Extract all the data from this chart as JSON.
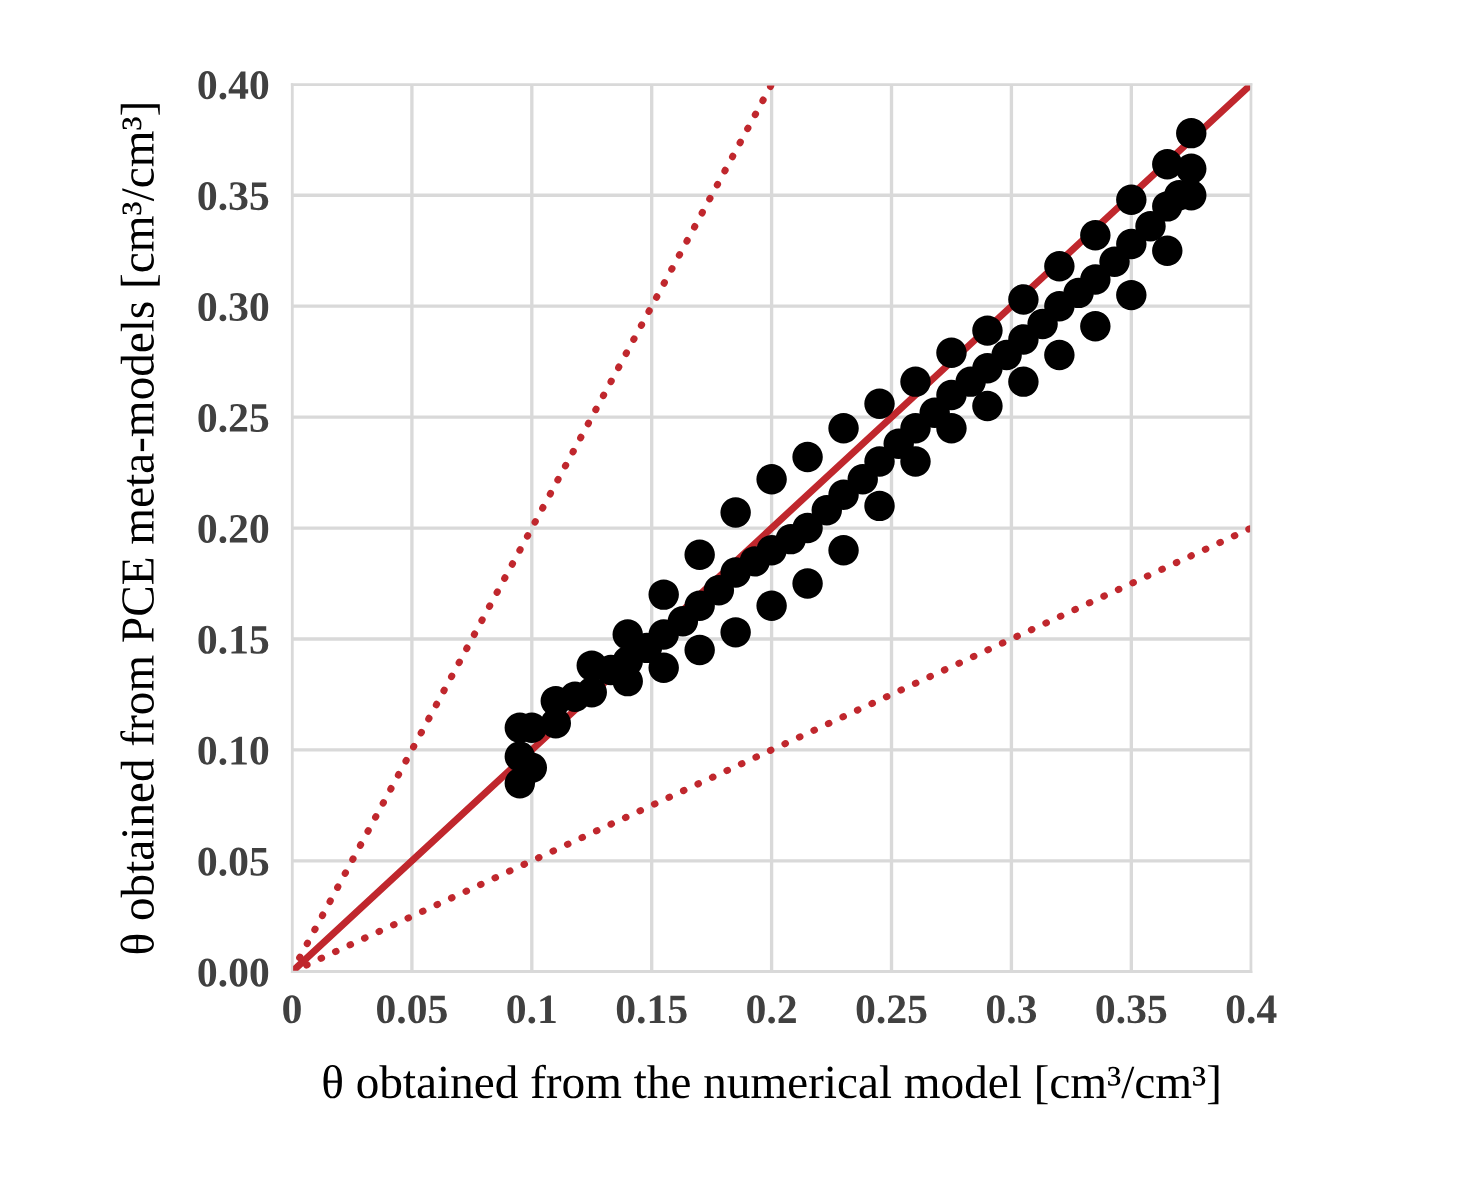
{
  "chart_data": {
    "type": "scatter",
    "xlabel": "θ obtained from the numerical model [cm³/cm³]",
    "ylabel": "θ obtained from PCE meta-models [cm³/cm³]",
    "xlim": [
      0,
      0.4
    ],
    "ylim": [
      0,
      0.4
    ],
    "xticks": [
      {
        "value": 0,
        "label": "0"
      },
      0.05,
      0.1,
      0.15,
      0.2,
      0.25,
      0.3,
      0.35,
      0.4
    ],
    "yticks": [
      {
        "value": 0,
        "label": "0.00"
      },
      0.05,
      {
        "value": 0.1,
        "label": "0.10"
      },
      0.15,
      {
        "value": 0.2,
        "label": "0.20"
      },
      0.25,
      {
        "value": 0.3,
        "label": "0.30"
      },
      0.35,
      {
        "value": 0.4,
        "label": "0.40"
      }
    ],
    "grid": true,
    "legend": false,
    "marker": "circle",
    "series": [
      {
        "type": "line",
        "color": "#c0272d",
        "line_style": "solid",
        "marker": "none",
        "x": [
          0,
          0.4
        ],
        "values": [
          0,
          0.4
        ]
      },
      {
        "type": "line",
        "color": "#c0272d",
        "line_style": "dotted",
        "marker": "none",
        "x": [
          0,
          0.2
        ],
        "values": [
          0,
          0.4
        ]
      },
      {
        "type": "line",
        "color": "#c0272d",
        "line_style": "dotted",
        "marker": "none",
        "x": [
          0,
          0.4
        ],
        "values": [
          0,
          0.2
        ]
      },
      {
        "color": "#000000",
        "x": [
          0.095,
          0.095,
          0.095,
          0.1,
          0.1,
          0.11,
          0.11,
          0.118,
          0.125,
          0.125,
          0.133,
          0.14,
          0.14,
          0.14,
          0.148,
          0.155,
          0.155,
          0.155,
          0.163,
          0.17,
          0.17,
          0.17,
          0.178,
          0.185,
          0.185,
          0.185,
          0.193,
          0.2,
          0.2,
          0.2,
          0.208,
          0.215,
          0.215,
          0.215,
          0.223,
          0.23,
          0.23,
          0.23,
          0.238,
          0.245,
          0.245,
          0.245,
          0.253,
          0.26,
          0.26,
          0.26,
          0.268,
          0.275,
          0.275,
          0.275,
          0.283,
          0.29,
          0.29,
          0.29,
          0.298,
          0.305,
          0.305,
          0.305,
          0.313,
          0.32,
          0.32,
          0.32,
          0.328,
          0.335,
          0.335,
          0.335,
          0.343,
          0.35,
          0.35,
          0.35,
          0.358,
          0.365,
          0.365,
          0.365,
          0.37,
          0.375,
          0.375,
          0.375
        ],
        "values": [
          0.085,
          0.097,
          0.11,
          0.092,
          0.11,
          0.112,
          0.122,
          0.124,
          0.126,
          0.138,
          0.136,
          0.131,
          0.14,
          0.152,
          0.146,
          0.137,
          0.152,
          0.17,
          0.158,
          0.145,
          0.165,
          0.188,
          0.172,
          0.153,
          0.18,
          0.207,
          0.185,
          0.165,
          0.19,
          0.222,
          0.195,
          0.175,
          0.2,
          0.232,
          0.208,
          0.19,
          0.215,
          0.245,
          0.222,
          0.21,
          0.23,
          0.256,
          0.238,
          0.23,
          0.245,
          0.266,
          0.252,
          0.245,
          0.26,
          0.279,
          0.266,
          0.255,
          0.272,
          0.289,
          0.278,
          0.266,
          0.285,
          0.303,
          0.292,
          0.278,
          0.3,
          0.318,
          0.306,
          0.291,
          0.312,
          0.332,
          0.32,
          0.305,
          0.328,
          0.348,
          0.336,
          0.325,
          0.345,
          0.364,
          0.35,
          0.35,
          0.362,
          0.378
        ]
      }
    ]
  }
}
